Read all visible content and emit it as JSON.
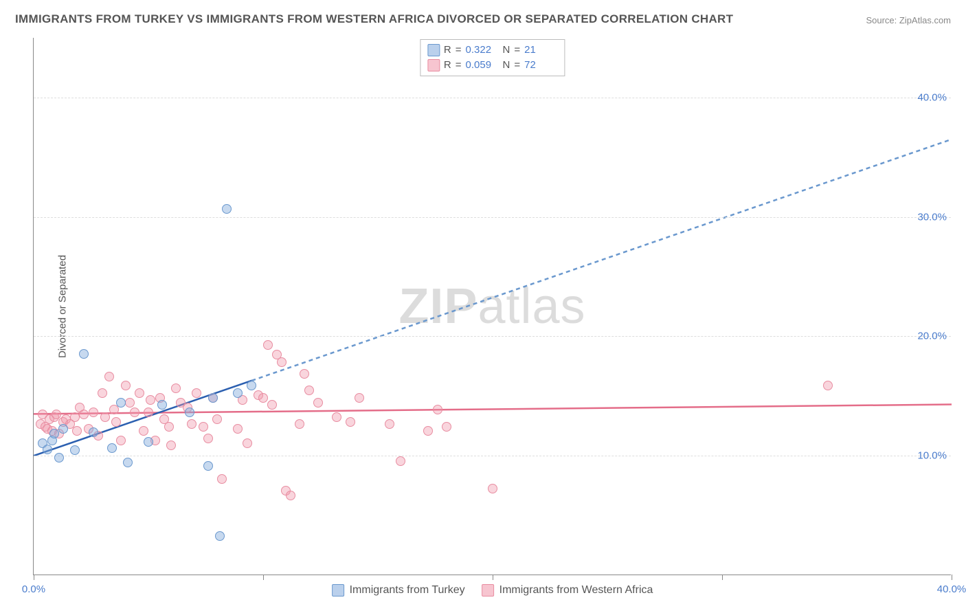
{
  "title": "IMMIGRANTS FROM TURKEY VS IMMIGRANTS FROM WESTERN AFRICA DIVORCED OR SEPARATED CORRELATION CHART",
  "source_label": "Source: ZipAtlas.com",
  "ylabel": "Divorced or Separated",
  "watermark_bold": "ZIP",
  "watermark_rest": "atlas",
  "chart": {
    "type": "scatter",
    "xlim": [
      0,
      40
    ],
    "ylim": [
      0,
      45
    ],
    "x_ticks": [
      0,
      10,
      20,
      30,
      40
    ],
    "x_tick_labels": [
      "0.0%",
      "",
      "",
      "",
      "40.0%"
    ],
    "y_grid": [
      10,
      20,
      30,
      40
    ],
    "y_grid_labels": [
      "10.0%",
      "20.0%",
      "30.0%",
      "40.0%"
    ],
    "background_color": "#ffffff",
    "grid_color": "#dddddd",
    "axis_color": "#888888",
    "tick_label_color": "#4a7ccc",
    "marker_size": 14,
    "series_a": {
      "label": "Immigrants from Turkey",
      "color_fill": "rgba(130,170,220,0.45)",
      "color_stroke": "#6a98ce",
      "r_label": "R",
      "r_value": "0.322",
      "n_label": "N",
      "n_value": "21",
      "trend": {
        "x1": 0,
        "y1": 10.0,
        "x2": 40,
        "y2": 36.5,
        "solid_until_x": 9.5,
        "color_solid": "#2b5fb0",
        "color_dash": "#6a98ce",
        "width": 2.5,
        "dash": "6,5"
      },
      "points": [
        [
          0.4,
          11.0
        ],
        [
          0.6,
          10.5
        ],
        [
          0.8,
          11.2
        ],
        [
          0.9,
          11.8
        ],
        [
          1.1,
          9.8
        ],
        [
          1.3,
          12.2
        ],
        [
          1.8,
          10.4
        ],
        [
          2.2,
          18.5
        ],
        [
          2.6,
          11.9
        ],
        [
          3.4,
          10.6
        ],
        [
          3.8,
          14.4
        ],
        [
          4.1,
          9.4
        ],
        [
          5.0,
          11.1
        ],
        [
          5.6,
          14.2
        ],
        [
          6.8,
          13.6
        ],
        [
          7.6,
          9.1
        ],
        [
          7.8,
          14.8
        ],
        [
          8.1,
          3.2
        ],
        [
          8.4,
          30.6
        ],
        [
          8.9,
          15.2
        ],
        [
          9.5,
          15.8
        ]
      ]
    },
    "series_b": {
      "label": "Immigrants from Western Africa",
      "color_fill": "rgba(240,150,170,0.40)",
      "color_stroke": "#e88ca0",
      "r_label": "R",
      "r_value": "0.059",
      "n_label": "N",
      "n_value": "72",
      "trend": {
        "x1": 0,
        "y1": 13.5,
        "x2": 40,
        "y2": 14.3,
        "solid_until_x": 40,
        "color_solid": "#e46d89",
        "color_dash": "#e46d89",
        "width": 2.5,
        "dash": ""
      },
      "points": [
        [
          0.3,
          12.6
        ],
        [
          0.4,
          13.4
        ],
        [
          0.5,
          12.4
        ],
        [
          0.6,
          12.2
        ],
        [
          0.7,
          13.0
        ],
        [
          0.8,
          12.0
        ],
        [
          0.9,
          13.2
        ],
        [
          1.0,
          13.4
        ],
        [
          1.1,
          11.8
        ],
        [
          1.3,
          12.8
        ],
        [
          1.4,
          13.0
        ],
        [
          1.6,
          12.6
        ],
        [
          1.8,
          13.2
        ],
        [
          1.9,
          12.0
        ],
        [
          2.0,
          14.0
        ],
        [
          2.2,
          13.4
        ],
        [
          2.4,
          12.2
        ],
        [
          2.6,
          13.6
        ],
        [
          2.8,
          11.6
        ],
        [
          3.0,
          15.2
        ],
        [
          3.1,
          13.2
        ],
        [
          3.3,
          16.6
        ],
        [
          3.5,
          13.8
        ],
        [
          3.6,
          12.8
        ],
        [
          3.8,
          11.2
        ],
        [
          4.0,
          15.8
        ],
        [
          4.2,
          14.4
        ],
        [
          4.4,
          13.6
        ],
        [
          4.6,
          15.2
        ],
        [
          4.8,
          12.0
        ],
        [
          5.0,
          13.6
        ],
        [
          5.1,
          14.6
        ],
        [
          5.3,
          11.2
        ],
        [
          5.5,
          14.8
        ],
        [
          5.7,
          13.0
        ],
        [
          5.9,
          12.4
        ],
        [
          6.0,
          10.8
        ],
        [
          6.2,
          15.6
        ],
        [
          6.7,
          14.0
        ],
        [
          6.9,
          12.6
        ],
        [
          7.1,
          15.2
        ],
        [
          7.4,
          12.4
        ],
        [
          7.6,
          11.4
        ],
        [
          7.8,
          14.8
        ],
        [
          8.0,
          13.0
        ],
        [
          8.2,
          8.0
        ],
        [
          8.9,
          12.2
        ],
        [
          9.1,
          14.6
        ],
        [
          9.3,
          11.0
        ],
        [
          9.8,
          15.0
        ],
        [
          10.0,
          14.8
        ],
        [
          10.2,
          19.2
        ],
        [
          10.4,
          14.2
        ],
        [
          10.8,
          17.8
        ],
        [
          10.6,
          18.4
        ],
        [
          11.0,
          7.0
        ],
        [
          11.2,
          6.6
        ],
        [
          11.6,
          12.6
        ],
        [
          11.8,
          16.8
        ],
        [
          12.0,
          15.4
        ],
        [
          12.4,
          14.4
        ],
        [
          13.2,
          13.2
        ],
        [
          13.8,
          12.8
        ],
        [
          14.2,
          14.8
        ],
        [
          15.5,
          12.6
        ],
        [
          16.0,
          9.5
        ],
        [
          17.2,
          12.0
        ],
        [
          17.6,
          13.8
        ],
        [
          18.0,
          12.4
        ],
        [
          20.0,
          7.2
        ],
        [
          34.6,
          15.8
        ],
        [
          6.4,
          14.4
        ]
      ]
    }
  },
  "xlegend": {
    "a": "Immigrants from Turkey",
    "b": "Immigrants from Western Africa"
  }
}
